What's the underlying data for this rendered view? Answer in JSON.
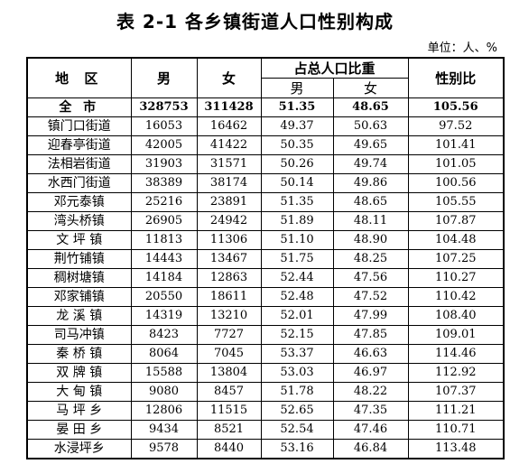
{
  "title": "表 2-1  各乡镇街道人口性别构成",
  "unit": "单位：人、%",
  "headers": {
    "area": "地 区",
    "male": "男",
    "female": "女",
    "share": "占总人口比重",
    "share_male": "男",
    "share_female": "女",
    "ratio": "性别比"
  },
  "rows": [
    {
      "name": "全 市",
      "male": "328753",
      "female": "311428",
      "pm": "51.35",
      "pf": "48.65",
      "ratio": "105.56"
    },
    {
      "name": "镇门口街道",
      "male": "16053",
      "female": "16462",
      "pm": "49.37",
      "pf": "50.63",
      "ratio": "97.52"
    },
    {
      "name": "迎春亭街道",
      "male": "42005",
      "female": "41422",
      "pm": "50.35",
      "pf": "49.65",
      "ratio": "101.41"
    },
    {
      "name": "法相岩街道",
      "male": "31903",
      "female": "31571",
      "pm": "50.26",
      "pf": "49.74",
      "ratio": "101.05"
    },
    {
      "name": "水西门街道",
      "male": "38389",
      "female": "38174",
      "pm": "50.14",
      "pf": "49.86",
      "ratio": "100.56"
    },
    {
      "name": "邓元泰镇",
      "male": "25216",
      "female": "23891",
      "pm": "51.35",
      "pf": "48.65",
      "ratio": "105.55"
    },
    {
      "name": "湾头桥镇",
      "male": "26905",
      "female": "24942",
      "pm": "51.89",
      "pf": "48.11",
      "ratio": "107.87"
    },
    {
      "name": "文 坪 镇",
      "male": "11813",
      "female": "11306",
      "pm": "51.10",
      "pf": "48.90",
      "ratio": "104.48"
    },
    {
      "name": "荆竹铺镇",
      "male": "14443",
      "female": "13467",
      "pm": "51.75",
      "pf": "48.25",
      "ratio": "107.25"
    },
    {
      "name": "稠树塘镇",
      "male": "14184",
      "female": "12863",
      "pm": "52.44",
      "pf": "47.56",
      "ratio": "110.27"
    },
    {
      "name": "邓家铺镇",
      "male": "20550",
      "female": "18611",
      "pm": "52.48",
      "pf": "47.52",
      "ratio": "110.42"
    },
    {
      "name": "龙 溪 镇",
      "male": "14319",
      "female": "13210",
      "pm": "52.01",
      "pf": "47.99",
      "ratio": "108.40"
    },
    {
      "name": "司马冲镇",
      "male": "8423",
      "female": "7727",
      "pm": "52.15",
      "pf": "47.85",
      "ratio": "109.01"
    },
    {
      "name": "秦 桥 镇",
      "male": "8064",
      "female": "7045",
      "pm": "53.37",
      "pf": "46.63",
      "ratio": "114.46"
    },
    {
      "name": "双 牌 镇",
      "male": "15588",
      "female": "13804",
      "pm": "53.03",
      "pf": "46.97",
      "ratio": "112.92"
    },
    {
      "name": "大 甸 镇",
      "male": "9080",
      "female": "8457",
      "pm": "51.78",
      "pf": "48.22",
      "ratio": "107.37"
    },
    {
      "name": "马 坪 乡",
      "male": "12806",
      "female": "11515",
      "pm": "52.65",
      "pf": "47.35",
      "ratio": "111.21"
    },
    {
      "name": "晏 田 乡",
      "male": "9434",
      "female": "8521",
      "pm": "52.54",
      "pf": "47.46",
      "ratio": "110.71"
    },
    {
      "name": "水浸坪乡",
      "male": "9578",
      "female": "8440",
      "pm": "53.16",
      "pf": "46.84",
      "ratio": "113.48"
    }
  ]
}
